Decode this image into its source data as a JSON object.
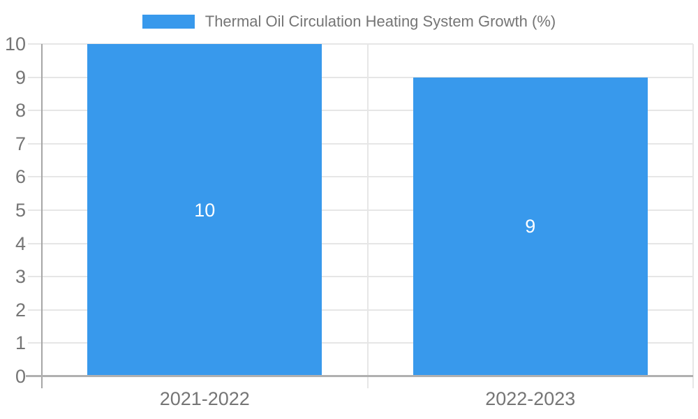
{
  "legend": {
    "items": [
      {
        "label": "Thermal Oil Circulation Heating System Growth (%)",
        "swatch_color": "#3899EC"
      }
    ],
    "position": "top-center"
  },
  "chart_data": {
    "type": "bar",
    "title": "Thermal Oil Circulation Heating System Growth (%)",
    "categories": [
      "2021-2022",
      "2022-2023"
    ],
    "values": [
      10,
      9
    ],
    "xlabel": "",
    "ylabel": "",
    "ylim": [
      0,
      10
    ],
    "ytick_step": 1,
    "ytick_labels": [
      "0",
      "1",
      "2",
      "3",
      "4",
      "5",
      "6",
      "7",
      "8",
      "9",
      "10"
    ],
    "grid": true,
    "legend_position": "top",
    "bar_width_fraction": 0.72,
    "colors": {
      "bar": "#3899EC",
      "axis_text": "#757575",
      "gridline": "#e6e6e6",
      "axis_line": "#a6a6a6",
      "baseline": "#b0b0b0",
      "bar_label": "#ffffff",
      "background": "#ffffff"
    }
  }
}
